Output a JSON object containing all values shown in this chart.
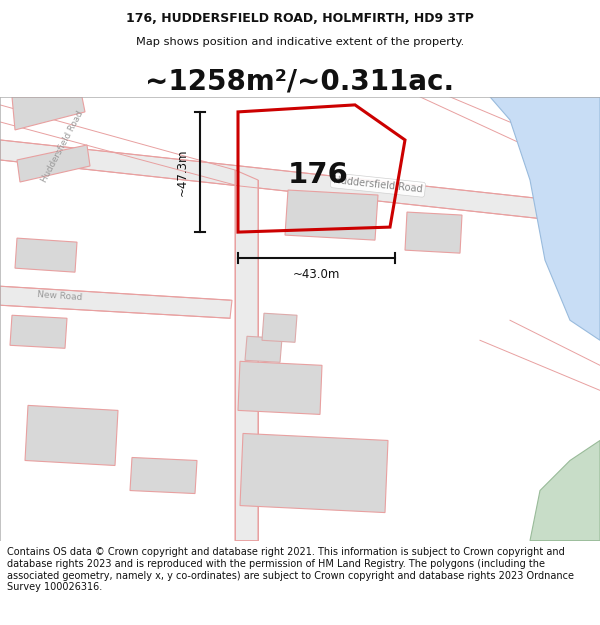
{
  "title": "176, HUDDERSFIELD ROAD, HOLMFIRTH, HD9 3TP",
  "subtitle": "Map shows position and indicative extent of the property.",
  "area_text": "~1258m²/~0.311ac.",
  "property_label": "176",
  "dim_width_label": "~43.0m",
  "dim_height_label": "~47.3m",
  "road_label_main": "Huddersfield Road",
  "road_label_new": "New Road",
  "footer_text": "Contains OS data © Crown copyright and database right 2021. This information is subject to Crown copyright and database rights 2023 and is reproduced with the permission of HM Land Registry. The polygons (including the associated geometry, namely x, y co-ordinates) are subject to Crown copyright and database rights 2023 Ordnance Survey 100026316.",
  "bg_color": "#ffffff",
  "map_bg": "#f7f7f7",
  "road_stroke": "#e8a0a0",
  "building_fill": "#d8d8d8",
  "building_stroke": "#e8a0a0",
  "river_fill": "#c8ddf5",
  "green_fill": "#c8ddc8",
  "property_stroke": "#cc0000",
  "dim_line_color": "#111111",
  "title_fontsize": 9.0,
  "subtitle_fontsize": 8.2,
  "area_fontsize": 20,
  "footer_fontsize": 7.0
}
